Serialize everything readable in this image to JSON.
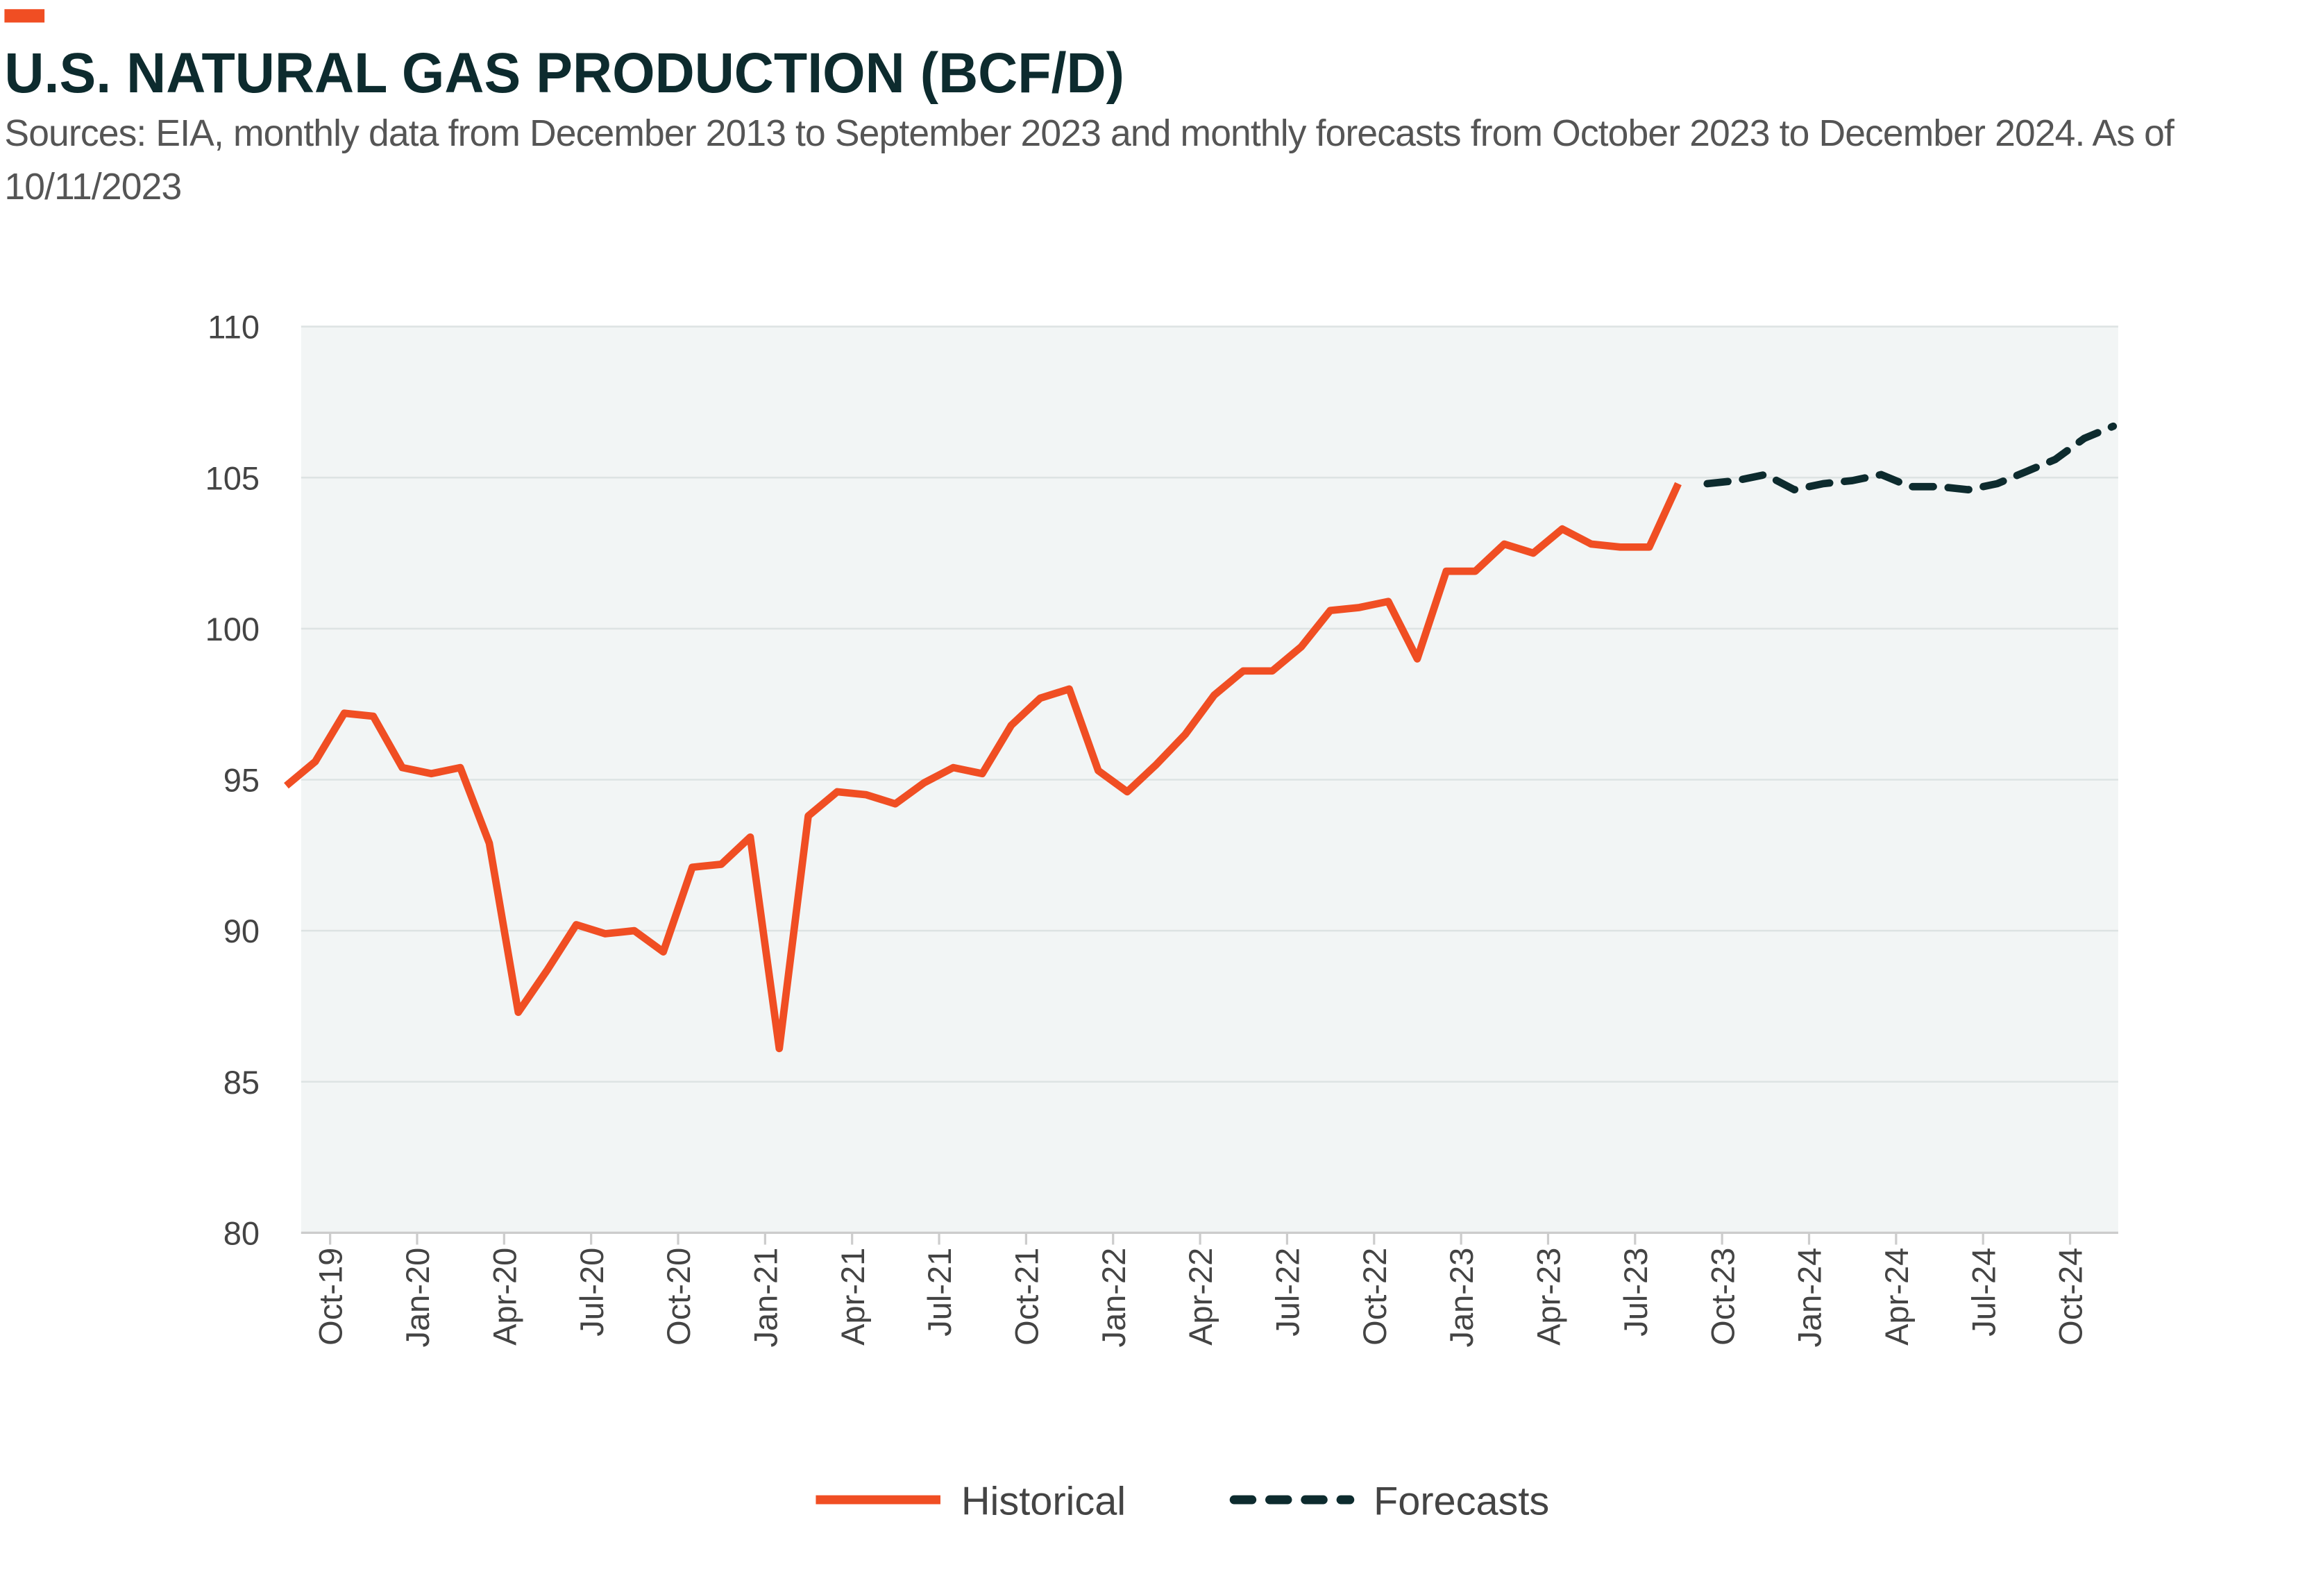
{
  "chart_data": {
    "type": "line",
    "title": "U.S. NATURAL GAS PRODUCTION (BCF/D)",
    "subtitle": "Sources: EIA, monthly data from December 2013 to September 2023 and monthly forecasts from October 2023 to December 2024.  As of 10/11/2023",
    "categories": [
      null,
      "Oct-19",
      null,
      null,
      "Jan-20",
      null,
      null,
      "Apr-20",
      null,
      null,
      "Jul-20",
      null,
      null,
      "Oct-20",
      null,
      null,
      "Jan-21",
      null,
      null,
      "Apr-21",
      null,
      null,
      "Jul-21",
      null,
      null,
      "Oct-21",
      null,
      null,
      "Jan-22",
      null,
      null,
      "Apr-22",
      null,
      null,
      "Jul-22",
      null,
      null,
      "Oct-22",
      null,
      null,
      "Jan-23",
      null,
      null,
      "Apr-23",
      null,
      null,
      "Jul-23",
      null,
      null,
      "Oct-23",
      null,
      null,
      "Jan-24",
      null,
      null,
      "Apr-24",
      null,
      null,
      "Jul-24",
      null,
      null,
      "Oct-24",
      null,
      null
    ],
    "series": [
      {
        "name": "Historical",
        "color": "#f04e23",
        "dashed": false,
        "values": [
          94.8,
          95.6,
          97.2,
          97.1,
          95.4,
          95.2,
          95.4,
          92.9,
          87.3,
          88.7,
          90.2,
          89.9,
          90.0,
          89.3,
          92.1,
          92.2,
          93.1,
          86.1,
          93.8,
          94.6,
          94.5,
          94.2,
          94.9,
          95.4,
          95.2,
          96.8,
          97.7,
          98.0,
          95.3,
          94.6,
          95.5,
          96.5,
          97.8,
          98.6,
          98.6,
          99.4,
          100.6,
          100.7,
          100.9,
          99.0,
          101.9,
          101.9,
          102.8,
          102.5,
          103.3,
          102.8,
          102.7,
          102.7,
          104.8,
          null,
          null,
          null,
          null,
          null,
          null,
          null,
          null,
          null,
          null,
          null,
          null,
          null,
          null,
          null
        ]
      },
      {
        "name": "Forecasts",
        "color": "#0d2b2e",
        "dashed": true,
        "values": [
          null,
          null,
          null,
          null,
          null,
          null,
          null,
          null,
          null,
          null,
          null,
          null,
          null,
          null,
          null,
          null,
          null,
          null,
          null,
          null,
          null,
          null,
          null,
          null,
          null,
          null,
          null,
          null,
          null,
          null,
          null,
          null,
          null,
          null,
          null,
          null,
          null,
          null,
          null,
          null,
          null,
          null,
          null,
          null,
          null,
          null,
          null,
          null,
          null,
          104.8,
          104.9,
          105.1,
          104.6,
          104.8,
          104.9,
          105.1,
          104.7,
          104.7,
          104.6,
          104.8,
          105.2,
          105.6,
          106.3,
          106.7
        ]
      }
    ],
    "ylim": [
      80,
      110
    ],
    "yticks": [
      80,
      85,
      90,
      95,
      100,
      105,
      110
    ],
    "grid": true,
    "legend": "bottom"
  }
}
